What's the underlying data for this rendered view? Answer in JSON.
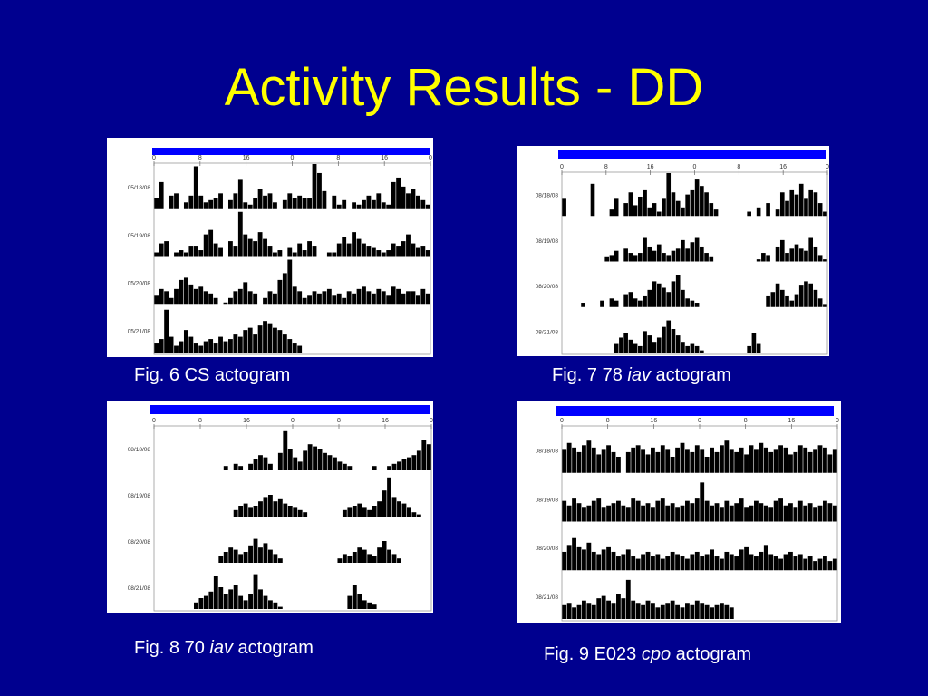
{
  "slide": {
    "title": "Activity Results - DD"
  },
  "colors": {
    "background": "#00008f",
    "title": "#ffff00",
    "caption": "#ffffff",
    "header_bar": "#0000ff",
    "activity": "#000000"
  },
  "figures": [
    {
      "caption": {
        "prefix": "Fig. 6 CS",
        "italic": "",
        "suffix": "actogram"
      }
    },
    {
      "caption": {
        "prefix": "Fig. 7 78",
        "italic": "iav",
        "suffix": "actogram"
      }
    },
    {
      "caption": {
        "prefix": "Fig. 8 70",
        "italic": "iav",
        "suffix": "actogram"
      }
    },
    {
      "caption": {
        "prefix": "Fig. 9 E023",
        "italic": "cpo",
        "suffix": "actogram"
      }
    }
  ],
  "chart_data": [
    {
      "type": "bar",
      "x_ticks": [
        "0",
        "8",
        "16",
        "0",
        "8",
        "16",
        "0"
      ],
      "rows": [
        {
          "date": "05/18/08",
          "values": [
            0.25,
            0.6,
            0,
            0.3,
            0.35,
            0,
            0.15,
            0.3,
            0.95,
            0.3,
            0.15,
            0.2,
            0.25,
            0.35,
            0,
            0.2,
            0.35,
            0.65,
            0.15,
            0.1,
            0.25,
            0.45,
            0.3,
            0.35,
            0.15,
            0,
            0.2,
            0.35,
            0.25,
            0.3,
            0.25,
            0.25,
            1.0,
            0.8,
            0.4,
            0,
            0.3,
            0.1,
            0.2,
            0,
            0.15,
            0.1,
            0.2,
            0.3,
            0.2,
            0.35,
            0.15,
            0.1,
            0.6,
            0.7,
            0.5,
            0.35,
            0.45,
            0.3,
            0.2,
            0.1
          ]
        },
        {
          "date": "05/19/08",
          "values": [
            0.1,
            0.3,
            0.35,
            0,
            0.1,
            0.15,
            0.1,
            0.25,
            0.25,
            0.15,
            0.5,
            0.6,
            0.3,
            0.2,
            0,
            0.35,
            0.25,
            1.0,
            0.5,
            0.4,
            0.35,
            0.55,
            0.4,
            0.25,
            0.1,
            0.15,
            0,
            0.2,
            0.1,
            0.3,
            0.15,
            0.35,
            0.25,
            0,
            0,
            0.1,
            0.1,
            0.3,
            0.45,
            0.3,
            0.55,
            0.4,
            0.3,
            0.25,
            0.2,
            0.15,
            0.1,
            0.15,
            0.3,
            0.25,
            0.35,
            0.5,
            0.3,
            0.2,
            0.25,
            0.15
          ]
        },
        {
          "date": "05/20/08",
          "values": [
            0.2,
            0.35,
            0.3,
            0.15,
            0.35,
            0.55,
            0.6,
            0.45,
            0.35,
            0.4,
            0.3,
            0.25,
            0.15,
            0,
            0.05,
            0.15,
            0.3,
            0.35,
            0.5,
            0.3,
            0.25,
            0,
            0.15,
            0.3,
            0.25,
            0.55,
            0.7,
            1.0,
            0.4,
            0.3,
            0.15,
            0.2,
            0.3,
            0.25,
            0.3,
            0.35,
            0.2,
            0.25,
            0.15,
            0.3,
            0.25,
            0.35,
            0.4,
            0.3,
            0.25,
            0.35,
            0.3,
            0.2,
            0.4,
            0.35,
            0.25,
            0.3,
            0.3,
            0.2,
            0.35,
            0.25
          ]
        },
        {
          "date": "05/21/08",
          "values": [
            0.2,
            0.3,
            0.95,
            0.35,
            0.15,
            0.25,
            0.5,
            0.35,
            0.2,
            0.15,
            0.25,
            0.3,
            0.2,
            0.35,
            0.25,
            0.3,
            0.4,
            0.35,
            0.5,
            0.55,
            0.4,
            0.6,
            0.7,
            0.65,
            0.55,
            0.5,
            0.4,
            0.3,
            0.2,
            0.15,
            0,
            0,
            0,
            0,
            0,
            0,
            0,
            0,
            0,
            0,
            0,
            0,
            0,
            0,
            0,
            0,
            0,
            0,
            0,
            0,
            0,
            0,
            0,
            0,
            0,
            0
          ]
        }
      ]
    },
    {
      "type": "bar",
      "x_ticks": [
        "0",
        "8",
        "16",
        "0",
        "8",
        "16",
        "0"
      ],
      "rows": [
        {
          "date": "08/18/08",
          "values": [
            0.4,
            0,
            0,
            0,
            0,
            0,
            0.75,
            0,
            0,
            0,
            0.15,
            0.4,
            0,
            0.3,
            0.55,
            0.25,
            0.45,
            0.6,
            0.2,
            0.3,
            0.1,
            0.4,
            1.0,
            0.55,
            0.35,
            0.2,
            0.5,
            0.6,
            0.85,
            0.7,
            0.55,
            0.3,
            0.15,
            0,
            0,
            0,
            0,
            0,
            0,
            0.1,
            0,
            0.2,
            0,
            0.3,
            0,
            0.15,
            0.55,
            0.35,
            0.6,
            0.5,
            0.75,
            0.4,
            0.6,
            0.55,
            0.3,
            0.1
          ]
        },
        {
          "date": "08/19/08",
          "values": [
            0,
            0,
            0,
            0,
            0,
            0,
            0,
            0,
            0,
            0.1,
            0.15,
            0.25,
            0,
            0.3,
            0.2,
            0.15,
            0.2,
            0.55,
            0.35,
            0.25,
            0.4,
            0.2,
            0.15,
            0.25,
            0.3,
            0.5,
            0.3,
            0.45,
            0.55,
            0.35,
            0.2,
            0.1,
            0,
            0,
            0,
            0,
            0,
            0,
            0,
            0,
            0,
            0.05,
            0.2,
            0.15,
            0,
            0.35,
            0.5,
            0.2,
            0.3,
            0.4,
            0.3,
            0.25,
            0.55,
            0.35,
            0.15,
            0.05
          ]
        },
        {
          "date": "08/20/08",
          "values": [
            0,
            0,
            0,
            0,
            0.1,
            0,
            0,
            0,
            0.15,
            0,
            0.2,
            0.15,
            0,
            0.3,
            0.35,
            0.2,
            0.15,
            0.25,
            0.4,
            0.6,
            0.55,
            0.45,
            0.35,
            0.6,
            0.75,
            0.4,
            0.2,
            0.15,
            0.1,
            0,
            0,
            0,
            0,
            0,
            0,
            0,
            0,
            0,
            0,
            0,
            0,
            0,
            0,
            0.25,
            0.35,
            0.55,
            0.4,
            0.25,
            0.15,
            0.3,
            0.5,
            0.6,
            0.55,
            0.4,
            0.2,
            0.05
          ]
        },
        {
          "date": "08/21/08",
          "values": [
            0,
            0,
            0,
            0,
            0,
            0,
            0,
            0,
            0,
            0,
            0,
            0.2,
            0.35,
            0.45,
            0.3,
            0.2,
            0.15,
            0.5,
            0.4,
            0.25,
            0.35,
            0.6,
            0.75,
            0.55,
            0.4,
            0.25,
            0.15,
            0.2,
            0.15,
            0.05,
            0,
            0,
            0,
            0,
            0,
            0,
            0,
            0,
            0,
            0.15,
            0.45,
            0.2,
            0,
            0,
            0,
            0,
            0,
            0,
            0,
            0,
            0,
            0,
            0,
            0,
            0,
            0
          ]
        }
      ]
    },
    {
      "type": "bar",
      "x_ticks": [
        "0",
        "8",
        "16",
        "0",
        "8",
        "16",
        "0"
      ],
      "rows": [
        {
          "date": "08/18/08",
          "values": [
            0,
            0,
            0,
            0,
            0,
            0,
            0,
            0,
            0,
            0,
            0,
            0,
            0,
            0,
            0.1,
            0,
            0.15,
            0.1,
            0,
            0.15,
            0.25,
            0.35,
            0.3,
            0.15,
            0,
            0.4,
            0.9,
            0.5,
            0.3,
            0.2,
            0.45,
            0.6,
            0.55,
            0.5,
            0.4,
            0.35,
            0.3,
            0.2,
            0.15,
            0.1,
            0,
            0,
            0,
            0,
            0.1,
            0,
            0,
            0.1,
            0.15,
            0.2,
            0.25,
            0.3,
            0.35,
            0.45,
            0.7,
            0.6
          ]
        },
        {
          "date": "08/19/08",
          "values": [
            0,
            0,
            0,
            0,
            0,
            0,
            0,
            0,
            0,
            0,
            0,
            0,
            0,
            0,
            0,
            0,
            0.15,
            0.25,
            0.3,
            0.2,
            0.25,
            0.35,
            0.45,
            0.5,
            0.35,
            0.4,
            0.3,
            0.25,
            0.2,
            0.15,
            0.1,
            0,
            0,
            0,
            0,
            0,
            0,
            0,
            0.15,
            0.2,
            0.25,
            0.3,
            0.2,
            0.15,
            0.25,
            0.35,
            0.6,
            0.9,
            0.45,
            0.35,
            0.3,
            0.2,
            0.1,
            0.05,
            0,
            0
          ]
        },
        {
          "date": "08/20/08",
          "values": [
            0,
            0,
            0,
            0,
            0,
            0,
            0,
            0,
            0,
            0,
            0,
            0,
            0,
            0.15,
            0.25,
            0.35,
            0.3,
            0.2,
            0.25,
            0.4,
            0.55,
            0.35,
            0.45,
            0.3,
            0.2,
            0.1,
            0,
            0,
            0,
            0,
            0,
            0,
            0,
            0,
            0,
            0,
            0,
            0.1,
            0.2,
            0.15,
            0.25,
            0.35,
            0.3,
            0.2,
            0.15,
            0.35,
            0.5,
            0.3,
            0.2,
            0.1,
            0,
            0,
            0,
            0,
            0,
            0
          ]
        },
        {
          "date": "08/21/08",
          "values": [
            0,
            0,
            0,
            0,
            0,
            0,
            0,
            0,
            0.15,
            0.25,
            0.3,
            0.4,
            0.75,
            0.5,
            0.35,
            0.45,
            0.55,
            0.3,
            0.2,
            0.35,
            0.8,
            0.45,
            0.3,
            0.2,
            0.15,
            0.05,
            0,
            0,
            0,
            0,
            0,
            0,
            0,
            0,
            0,
            0,
            0,
            0,
            0,
            0.3,
            0.55,
            0.35,
            0.2,
            0.15,
            0.1,
            0,
            0,
            0,
            0,
            0,
            0,
            0,
            0,
            0,
            0,
            0
          ]
        }
      ]
    },
    {
      "type": "bar",
      "x_ticks": [
        "0",
        "8",
        "16",
        "0",
        "8",
        "16",
        "0"
      ],
      "rows": [
        {
          "date": "08/18/08",
          "values": [
            0.5,
            0.65,
            0.55,
            0.45,
            0.6,
            0.7,
            0.55,
            0.4,
            0.5,
            0.6,
            0.45,
            0.35,
            0,
            0.45,
            0.55,
            0.6,
            0.5,
            0.4,
            0.55,
            0.45,
            0.6,
            0.5,
            0.35,
            0.55,
            0.65,
            0.5,
            0.45,
            0.6,
            0.5,
            0.35,
            0.55,
            0.45,
            0.6,
            0.7,
            0.5,
            0.45,
            0.55,
            0.4,
            0.6,
            0.5,
            0.65,
            0.55,
            0.45,
            0.5,
            0.6,
            0.55,
            0.4,
            0.45,
            0.6,
            0.55,
            0.45,
            0.5,
            0.6,
            0.55,
            0.4,
            0.5
          ]
        },
        {
          "date": "08/19/08",
          "values": [
            0.45,
            0.35,
            0.5,
            0.4,
            0.3,
            0.35,
            0.45,
            0.5,
            0.3,
            0.35,
            0.4,
            0.45,
            0.35,
            0.3,
            0.5,
            0.45,
            0.35,
            0.4,
            0.3,
            0.45,
            0.5,
            0.35,
            0.4,
            0.3,
            0.35,
            0.45,
            0.4,
            0.5,
            0.85,
            0.45,
            0.35,
            0.4,
            0.3,
            0.45,
            0.35,
            0.4,
            0.5,
            0.3,
            0.35,
            0.45,
            0.4,
            0.35,
            0.3,
            0.45,
            0.5,
            0.35,
            0.4,
            0.3,
            0.45,
            0.35,
            0.4,
            0.3,
            0.35,
            0.45,
            0.4,
            0.35
          ]
        },
        {
          "date": "08/20/08",
          "values": [
            0.4,
            0.55,
            0.7,
            0.5,
            0.45,
            0.6,
            0.4,
            0.35,
            0.45,
            0.5,
            0.4,
            0.3,
            0.35,
            0.45,
            0.3,
            0.25,
            0.35,
            0.4,
            0.3,
            0.35,
            0.25,
            0.3,
            0.4,
            0.35,
            0.3,
            0.25,
            0.35,
            0.4,
            0.3,
            0.35,
            0.45,
            0.3,
            0.25,
            0.4,
            0.35,
            0.3,
            0.45,
            0.5,
            0.35,
            0.3,
            0.4,
            0.55,
            0.35,
            0.3,
            0.25,
            0.35,
            0.4,
            0.3,
            0.35,
            0.25,
            0.3,
            0.2,
            0.25,
            0.3,
            0.2,
            0.25
          ]
        },
        {
          "date": "08/21/08",
          "values": [
            0.3,
            0.35,
            0.25,
            0.3,
            0.4,
            0.35,
            0.3,
            0.45,
            0.5,
            0.4,
            0.35,
            0.55,
            0.45,
            0.85,
            0.4,
            0.35,
            0.3,
            0.4,
            0.35,
            0.25,
            0.3,
            0.35,
            0.4,
            0.3,
            0.25,
            0.35,
            0.3,
            0.4,
            0.35,
            0.3,
            0.25,
            0.3,
            0.35,
            0.3,
            0.25,
            0,
            0,
            0,
            0,
            0,
            0,
            0,
            0,
            0,
            0,
            0,
            0,
            0,
            0,
            0,
            0,
            0,
            0,
            0,
            0,
            0
          ]
        }
      ]
    }
  ]
}
